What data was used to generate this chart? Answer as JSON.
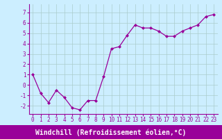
{
  "x": [
    0,
    1,
    2,
    3,
    4,
    5,
    6,
    7,
    8,
    9,
    10,
    11,
    12,
    13,
    14,
    15,
    16,
    17,
    18,
    19,
    20,
    21,
    22,
    23
  ],
  "y": [
    1.0,
    -0.8,
    -1.7,
    -0.5,
    -1.2,
    -2.2,
    -2.4,
    -1.5,
    -1.5,
    0.8,
    3.5,
    3.7,
    4.8,
    5.8,
    5.5,
    5.5,
    5.2,
    4.7,
    4.7,
    5.2,
    5.5,
    5.8,
    6.6,
    6.8
  ],
  "line_color": "#990099",
  "marker": "D",
  "marker_size": 2.0,
  "line_width": 0.9,
  "xlim": [
    -0.5,
    23.5
  ],
  "ylim": [
    -2.8,
    7.8
  ],
  "yticks": [
    -2,
    -1,
    0,
    1,
    2,
    3,
    4,
    5,
    6,
    7
  ],
  "xticks": [
    0,
    1,
    2,
    3,
    4,
    5,
    6,
    7,
    8,
    9,
    10,
    11,
    12,
    13,
    14,
    15,
    16,
    17,
    18,
    19,
    20,
    21,
    22,
    23
  ],
  "xlabel": "Windchill (Refroidissement éolien,°C)",
  "background_color": "#cceeff",
  "plot_bg_color": "#cceeff",
  "grid_color": "#aacccc",
  "tick_label_fontsize": 5.5,
  "xlabel_fontsize": 7.0,
  "xlabel_color": "#990099",
  "tick_color": "#990099",
  "bottom_bar_color": "#990099",
  "bottom_bar_height": 0.04
}
